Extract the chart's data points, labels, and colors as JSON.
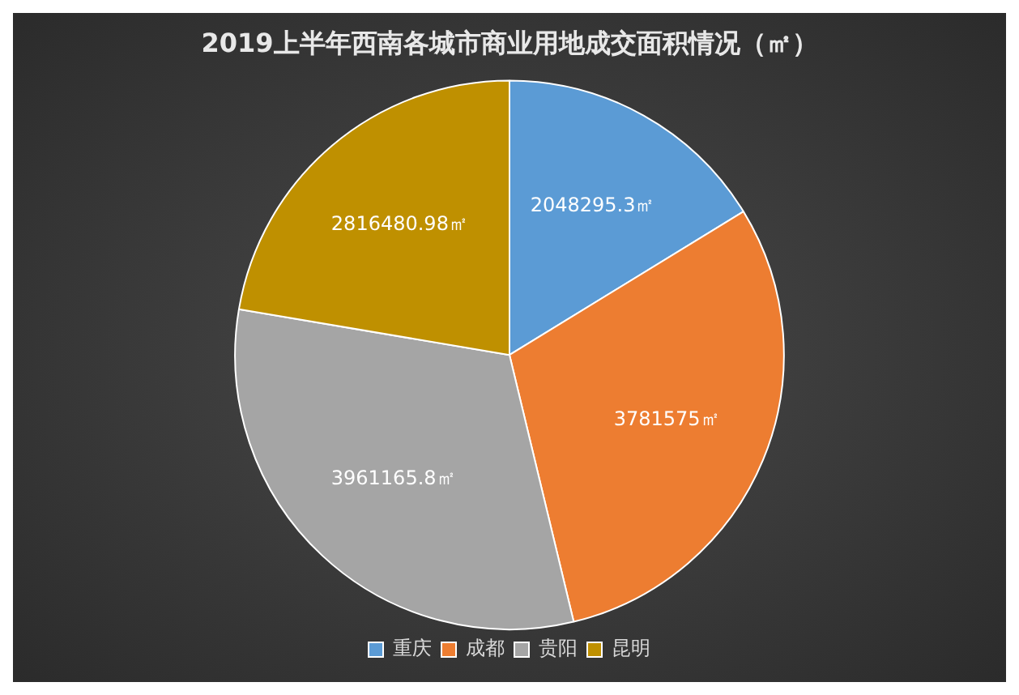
{
  "chart_data": {
    "type": "pie",
    "title": "2019上半年西南各城市商业用地成交面积情况（㎡）",
    "categories": [
      "重庆",
      "成都",
      "贵阳",
      "昆明"
    ],
    "values": [
      2048295.3,
      3781575,
      3961165.8,
      2816480.98
    ],
    "colors": [
      "#5b9bd5",
      "#ed7d31",
      "#a5a5a5",
      "#bf9000"
    ],
    "value_labels": [
      "2048295.3㎡",
      "3781575㎡",
      "3961165.8㎡",
      "2816480.98㎡"
    ],
    "legend": "bottom"
  }
}
